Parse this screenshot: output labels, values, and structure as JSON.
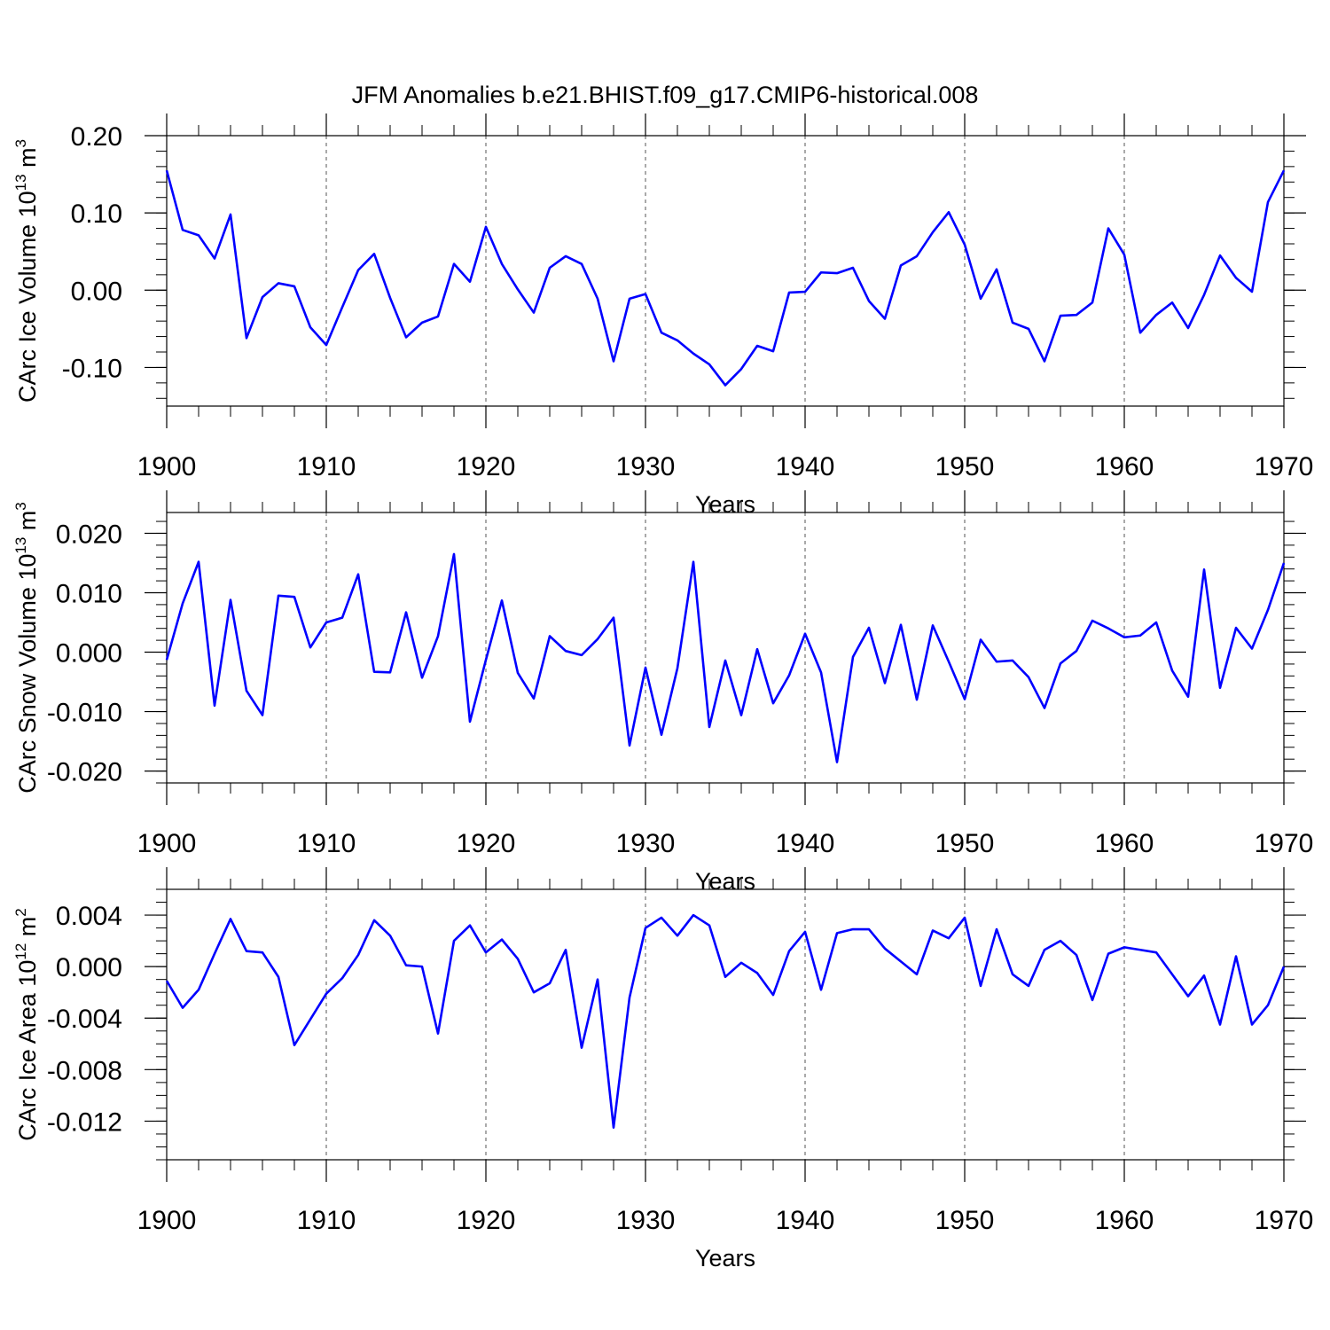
{
  "title": "JFM Anomalies b.e21.BHIST.f09_g17.CMIP6-historical.008",
  "line_color": "#0000ff",
  "chart_data": [
    {
      "type": "line",
      "ylabel": {
        "text": "CArc Ice Volume 10",
        "exp": "13",
        "unit": " m",
        "unit_exp": "3"
      },
      "xlabel": "Years",
      "xlim": [
        1900,
        1970
      ],
      "ylim": [
        -0.15,
        0.2
      ],
      "yticks": [
        -0.1,
        0.0,
        0.1,
        0.2
      ],
      "ytick_labels": [
        "-0.10",
        "0.00",
        "0.10",
        "0.20"
      ],
      "yminor_step": 0.02,
      "xticks": [
        1900,
        1910,
        1920,
        1930,
        1940,
        1950,
        1960,
        1970
      ],
      "xtick_labels": [
        "1900",
        "1910",
        "1920",
        "1930",
        "1940",
        "1950",
        "1960",
        "1970"
      ],
      "x_start": 1900,
      "values": [
        0.155,
        0.078,
        0.071,
        0.041,
        0.098,
        -0.062,
        -0.009,
        0.009,
        0.005,
        -0.048,
        -0.071,
        -0.022,
        0.026,
        0.047,
        -0.01,
        -0.061,
        -0.042,
        -0.034,
        0.034,
        0.011,
        0.082,
        0.034,
        0.001,
        -0.029,
        0.029,
        0.044,
        0.034,
        -0.011,
        -0.092,
        -0.011,
        -0.005,
        -0.055,
        -0.065,
        -0.082,
        -0.096,
        -0.123,
        -0.102,
        -0.072,
        -0.079,
        -0.003,
        -0.002,
        0.023,
        0.022,
        0.029,
        -0.014,
        -0.037,
        0.032,
        0.044,
        0.075,
        0.101,
        0.059,
        -0.011,
        0.027,
        -0.042,
        -0.05,
        -0.092,
        -0.033,
        -0.032,
        -0.016,
        0.08,
        0.046,
        -0.055,
        -0.032,
        -0.016,
        -0.049,
        -0.006,
        0.045,
        0.016,
        -0.002,
        0.114,
        0.155
      ]
    },
    {
      "type": "line",
      "ylabel": {
        "text": "CArc Snow Volume 10",
        "exp": "13",
        "unit": " m",
        "unit_exp": "3"
      },
      "xlabel": "Years",
      "xlim": [
        1900,
        1970
      ],
      "ylim": [
        -0.022,
        0.0235
      ],
      "yticks": [
        -0.02,
        -0.01,
        0.0,
        0.01,
        0.02
      ],
      "ytick_labels": [
        "-0.020",
        "-0.010",
        "0.000",
        "0.010",
        "0.020"
      ],
      "yminor_step": 0.002,
      "xticks": [
        1900,
        1910,
        1920,
        1930,
        1940,
        1950,
        1960,
        1970
      ],
      "xtick_labels": [
        "1900",
        "1910",
        "1920",
        "1930",
        "1940",
        "1950",
        "1960",
        "1970"
      ],
      "x_start": 1900,
      "values": [
        -0.0013,
        0.0082,
        0.0152,
        -0.009,
        0.0088,
        -0.0065,
        -0.0106,
        0.0095,
        0.0093,
        0.0008,
        0.005,
        0.0058,
        0.0131,
        -0.0033,
        -0.0034,
        0.0067,
        -0.0043,
        0.0027,
        0.0165,
        -0.0117,
        -0.0013,
        0.0087,
        -0.0035,
        -0.0078,
        0.0027,
        0.0002,
        -0.0005,
        0.0022,
        0.0058,
        -0.0157,
        -0.0026,
        -0.0139,
        -0.0027,
        0.0152,
        -0.0126,
        -0.0014,
        -0.0106,
        0.0005,
        -0.0086,
        -0.0039,
        0.0031,
        -0.0034,
        -0.0185,
        -0.0008,
        0.0041,
        -0.0052,
        0.0046,
        -0.008,
        0.0045,
        -0.0016,
        -0.0079,
        0.0021,
        -0.0016,
        -0.0014,
        -0.0042,
        -0.0094,
        -0.0019,
        0.0002,
        0.0053,
        0.004,
        0.0025,
        0.0028,
        0.005,
        -0.0031,
        -0.0075,
        0.0139,
        -0.006,
        0.0041,
        0.0006,
        0.0071,
        0.015
      ]
    },
    {
      "type": "line",
      "ylabel": {
        "text": "CArc Ice Area 10",
        "exp": "12",
        "unit": " m",
        "unit_exp": "2"
      },
      "xlabel": "Years",
      "xlim": [
        1900,
        1970
      ],
      "ylim": [
        -0.015,
        0.006
      ],
      "yticks": [
        -0.012,
        -0.008,
        -0.004,
        0.0,
        0.004
      ],
      "ytick_labels": [
        "-0.012",
        "-0.008",
        "-0.004",
        "0.000",
        "0.004"
      ],
      "yminor_step": 0.001,
      "xticks": [
        1900,
        1910,
        1920,
        1930,
        1940,
        1950,
        1960,
        1970
      ],
      "xtick_labels": [
        "1900",
        "1910",
        "1920",
        "1930",
        "1940",
        "1950",
        "1960",
        "1970"
      ],
      "x_start": 1900,
      "values": [
        -0.0011,
        -0.0032,
        -0.0018,
        0.001,
        0.0037,
        0.0012,
        0.0011,
        -0.0008,
        -0.0061,
        -0.0041,
        -0.0021,
        -0.0009,
        0.0009,
        0.0036,
        0.0024,
        0.0001,
        0.0,
        -0.0052,
        0.002,
        0.0032,
        0.0011,
        0.0021,
        0.0006,
        -0.002,
        -0.0013,
        0.0013,
        -0.0063,
        -0.001,
        -0.0125,
        -0.0024,
        0.003,
        0.0038,
        0.0024,
        0.004,
        0.0032,
        -0.0008,
        0.0003,
        -0.0005,
        -0.0022,
        0.0012,
        0.0027,
        -0.0018,
        0.0026,
        0.0029,
        0.0029,
        0.0014,
        0.0004,
        -0.0006,
        0.0028,
        0.0022,
        0.0038,
        -0.0015,
        0.0029,
        -0.0006,
        -0.0015,
        0.0013,
        0.002,
        0.0009,
        -0.0026,
        0.001,
        0.0015,
        0.0013,
        0.0011,
        -0.0006,
        -0.0023,
        -0.0007,
        -0.0045,
        0.0008,
        -0.0045,
        -0.003,
        0.0
      ]
    }
  ]
}
